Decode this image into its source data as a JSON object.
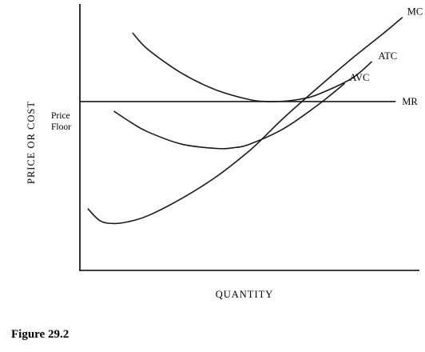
{
  "chart_data": {
    "type": "line",
    "xlabel": "QUANTITY",
    "ylabel": "PRICE OR COST",
    "ylim": [
      0,
      100
    ],
    "xlim": [
      0,
      100
    ],
    "grid": false,
    "price_floor": {
      "label_line1": "Price",
      "label_line2": "Floor",
      "value": 63.4
    },
    "series": [
      {
        "name": "MC",
        "x": [
          2.3,
          6,
          10,
          14,
          20,
          30,
          40,
          50,
          55,
          60,
          70,
          80,
          90,
          95
        ],
        "y": [
          23.2,
          18.6,
          17.6,
          18.2,
          20.5,
          27,
          35,
          45,
          51,
          57.2,
          68.5,
          79.4,
          89.6,
          95
        ]
      },
      {
        "name": "ATC",
        "x": [
          15.5,
          20,
          30,
          40,
          50,
          55,
          60,
          65,
          70,
          80,
          86
        ],
        "y": [
          89.2,
          83,
          74,
          67.8,
          64.1,
          63.4,
          63.5,
          64.3,
          66,
          72,
          78.4
        ]
      },
      {
        "name": "AVC",
        "x": [
          10,
          15,
          20,
          30,
          40,
          45,
          50,
          60,
          70,
          78
        ],
        "y": [
          59.8,
          55.6,
          52,
          47.4,
          45.8,
          46,
          47.4,
          53.2,
          62,
          70.2
        ]
      },
      {
        "name": "MR",
        "x": [
          0,
          93
        ],
        "y": [
          63.4,
          63.4
        ]
      }
    ]
  },
  "figure": {
    "caption": "Figure 29.2"
  }
}
